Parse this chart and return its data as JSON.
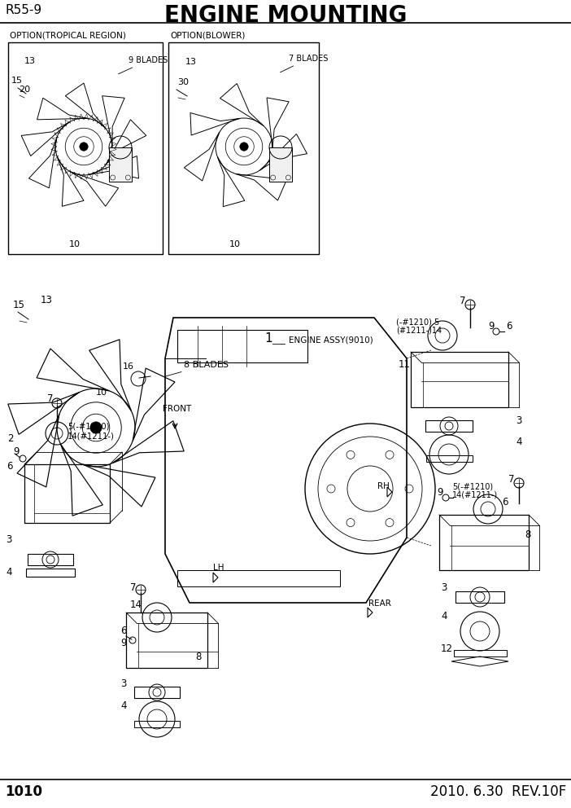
{
  "title": "ENGINE MOUNTING",
  "model": "R55-9",
  "page": "1010",
  "date": "2010. 6.30  REV.10F",
  "bg_color": "#ffffff",
  "line_color": "#000000",
  "title_fontsize": 20,
  "model_fontsize": 11,
  "page_fontsize": 12,
  "option1_label": "OPTION(TROPICAL REGION)",
  "option2_label": "OPTION(BLOWER)",
  "blades1": "9 BLADES",
  "blades2": "7 BLADES",
  "blades3": "8 BLADES",
  "engine_label": "ENGINE ASSY(9010)",
  "front_label": "FRONT",
  "rear_label": "REAR",
  "lh_label": "LH",
  "rh_label": "RH"
}
